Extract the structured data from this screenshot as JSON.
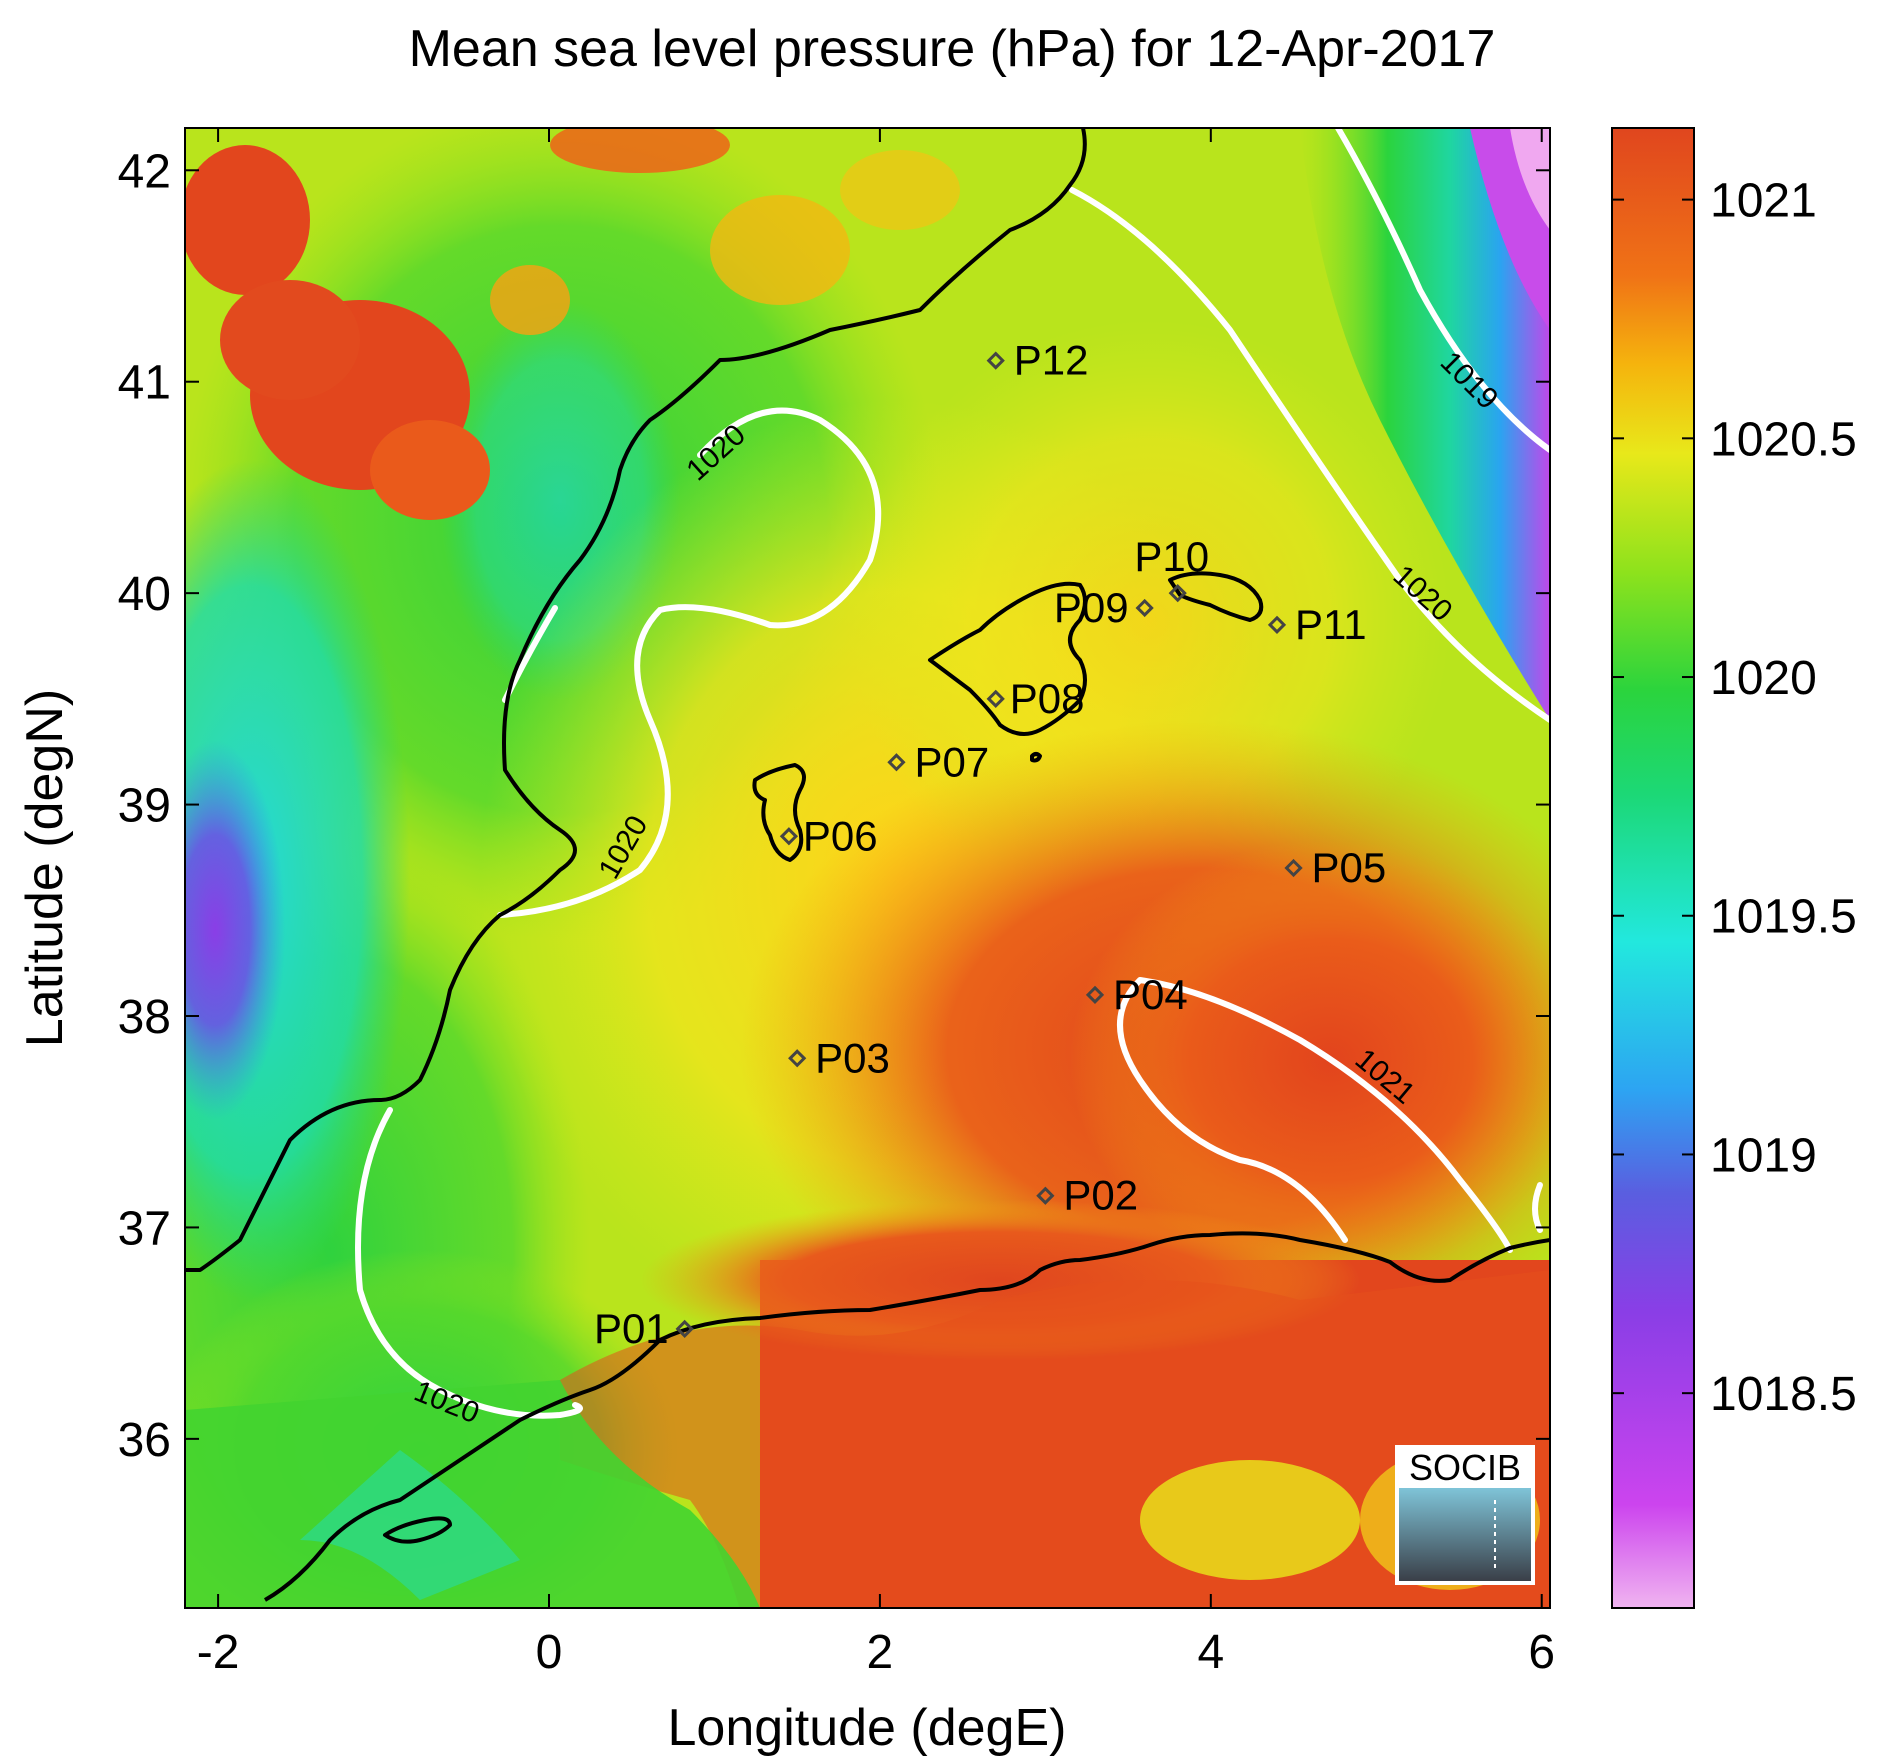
{
  "title": "Mean sea level pressure (hPa) for 12-Apr-2017",
  "axes": {
    "xlabel": "Longitude (degE)",
    "ylabel": "Latitude (degN)",
    "xlim": [
      -2.2,
      6.05
    ],
    "ylim": [
      35.2,
      42.2
    ],
    "xticks": [
      -2,
      0,
      2,
      4,
      6
    ],
    "yticks": [
      36,
      37,
      38,
      39,
      40,
      41,
      42
    ]
  },
  "colorbar": {
    "range": [
      1018.05,
      1021.15
    ],
    "ticks": [
      1018.5,
      1019,
      1019.5,
      1020,
      1020.5,
      1021
    ],
    "colors": [
      "#f0b4f0",
      "#cc44ee",
      "#8a3ee6",
      "#5a5ee0",
      "#2da4f2",
      "#22e8de",
      "#1cd876",
      "#2bd43d",
      "#8ee21c",
      "#e8e81a",
      "#f5b40d",
      "#f07316",
      "#e0461e"
    ]
  },
  "contours": [
    {
      "label": "1019"
    },
    {
      "label": "1020"
    },
    {
      "label": "1020"
    },
    {
      "label": "1020"
    },
    {
      "label": "1020"
    },
    {
      "label": "1021"
    }
  ],
  "stations": [
    {
      "name": "P01",
      "lon": 0.82,
      "lat": 36.52
    },
    {
      "name": "P02",
      "lon": 3.0,
      "lat": 37.15
    },
    {
      "name": "P03",
      "lon": 1.5,
      "lat": 37.8
    },
    {
      "name": "P04",
      "lon": 3.3,
      "lat": 38.1
    },
    {
      "name": "P05",
      "lon": 4.5,
      "lat": 38.7
    },
    {
      "name": "P06",
      "lon": 1.45,
      "lat": 38.85
    },
    {
      "name": "P07",
      "lon": 2.1,
      "lat": 39.2
    },
    {
      "name": "P08",
      "lon": 2.7,
      "lat": 39.5
    },
    {
      "name": "P09",
      "lon": 3.6,
      "lat": 39.93
    },
    {
      "name": "P10",
      "lon": 3.8,
      "lat": 40.0
    },
    {
      "name": "P11",
      "lon": 4.4,
      "lat": 39.85
    },
    {
      "name": "P12",
      "lon": 2.7,
      "lat": 41.1
    }
  ],
  "logo": {
    "text": "SOCIB",
    "color": "#5fb8d0"
  },
  "chart_data": {
    "type": "heatmap",
    "title": "Mean sea level pressure (hPa) for 12-Apr-2017",
    "xlabel": "Longitude (degE)",
    "ylabel": "Latitude (degN)",
    "xlim": [
      -2.2,
      6.05
    ],
    "ylim": [
      35.2,
      42.2
    ],
    "colorbar_range": [
      1018.05,
      1021.15
    ],
    "contour_levels": [
      1019,
      1020,
      1021
    ],
    "grid": false
  }
}
